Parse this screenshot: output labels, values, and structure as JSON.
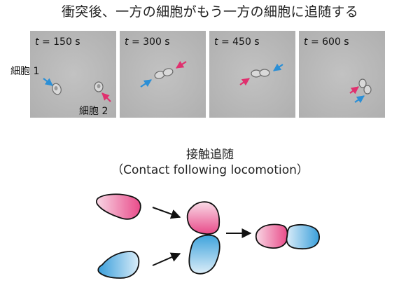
{
  "heading": "衝突後、一方の細胞がもう一方の細胞に追随する",
  "panels": [
    {
      "time_var": "t",
      "time_text": " = 150 s"
    },
    {
      "time_var": "t",
      "time_text": " = 300 s"
    },
    {
      "time_var": "t",
      "time_text": " = 450 s"
    },
    {
      "time_var": "t",
      "time_text": " = 600 s"
    }
  ],
  "cell_labels": {
    "cell1": "細胞 1",
    "cell2": "細胞 2"
  },
  "diagram": {
    "title": "接触追随",
    "subtitle": "（Contact following locomotion）"
  },
  "colors": {
    "blue_arrow": "#2b8fd6",
    "pink_arrow": "#e0306e",
    "pink_cell": "#ee5f96",
    "blue_cell": "#3fa5dd",
    "micrograph_bg": "#b9b9b9"
  }
}
